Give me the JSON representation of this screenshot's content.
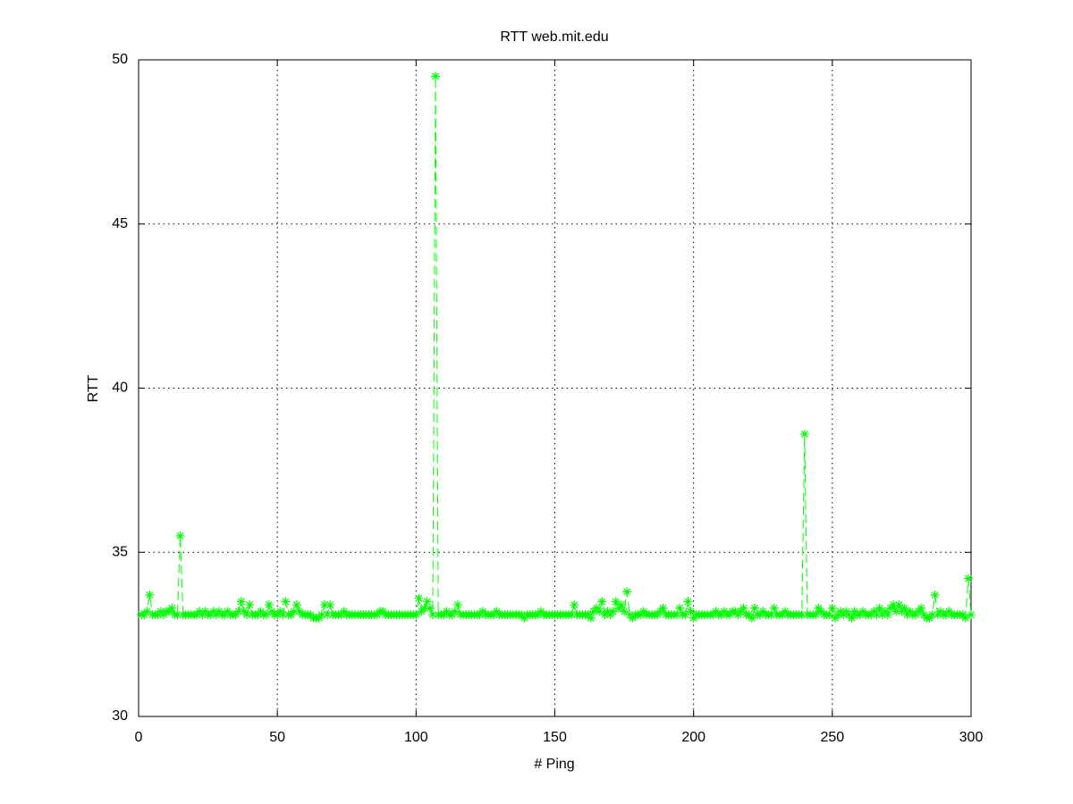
{
  "chart_data": {
    "type": "line",
    "title": "RTT web.mit.edu",
    "x_label": "# Ping",
    "y_label": "RTT",
    "xlim": [
      0,
      300
    ],
    "xticks": [
      0,
      50,
      100,
      150,
      200,
      250,
      300
    ],
    "ylim": [
      30,
      50
    ],
    "yticks": [
      30,
      35,
      40,
      45,
      50
    ],
    "grid": true,
    "marker": "asterisk",
    "line_style": "dashed",
    "x": [
      1,
      2,
      3,
      4,
      5,
      6,
      7,
      8,
      9,
      10,
      11,
      12,
      13,
      14,
      15,
      16,
      17,
      18,
      19,
      20,
      21,
      22,
      23,
      24,
      25,
      26,
      27,
      28,
      29,
      30,
      31,
      32,
      33,
      34,
      35,
      36,
      37,
      38,
      39,
      40,
      41,
      42,
      43,
      44,
      45,
      46,
      47,
      48,
      49,
      50,
      51,
      52,
      53,
      54,
      55,
      56,
      57,
      58,
      59,
      60,
      61,
      62,
      63,
      64,
      65,
      66,
      67,
      68,
      69,
      70,
      71,
      72,
      73,
      74,
      75,
      76,
      77,
      78,
      79,
      80,
      81,
      82,
      83,
      84,
      85,
      86,
      87,
      88,
      89,
      90,
      91,
      92,
      93,
      94,
      95,
      96,
      97,
      98,
      99,
      100,
      101,
      102,
      103,
      104,
      105,
      106,
      107,
      108,
      109,
      110,
      111,
      112,
      113,
      114,
      115,
      116,
      117,
      118,
      119,
      120,
      121,
      122,
      123,
      124,
      125,
      126,
      127,
      128,
      129,
      130,
      131,
      132,
      133,
      134,
      135,
      136,
      137,
      138,
      139,
      140,
      141,
      142,
      143,
      144,
      145,
      146,
      147,
      148,
      149,
      150,
      151,
      152,
      153,
      154,
      155,
      156,
      157,
      158,
      159,
      160,
      161,
      162,
      163,
      164,
      165,
      166,
      167,
      168,
      169,
      170,
      171,
      172,
      173,
      174,
      175,
      176,
      177,
      178,
      179,
      180,
      181,
      182,
      183,
      184,
      185,
      186,
      187,
      188,
      189,
      190,
      191,
      192,
      193,
      194,
      195,
      196,
      197,
      198,
      199,
      200,
      201,
      202,
      203,
      204,
      205,
      206,
      207,
      208,
      209,
      210,
      211,
      212,
      213,
      214,
      215,
      216,
      217,
      218,
      219,
      220,
      221,
      222,
      223,
      224,
      225,
      226,
      227,
      228,
      229,
      230,
      231,
      232,
      233,
      234,
      235,
      236,
      237,
      238,
      239,
      240,
      241,
      242,
      243,
      244,
      245,
      246,
      247,
      248,
      249,
      250,
      251,
      252,
      253,
      254,
      255,
      256,
      257,
      258,
      259,
      260,
      261,
      262,
      263,
      264,
      265,
      266,
      267,
      268,
      269,
      270,
      271,
      272,
      273,
      274,
      275,
      276,
      277,
      278,
      279,
      280,
      281,
      282,
      283,
      284,
      285,
      286,
      287,
      288,
      289,
      290,
      291,
      292,
      293,
      294,
      295,
      296,
      297,
      298,
      299,
      300
    ],
    "series": [
      {
        "color": "#00ff00",
        "values": [
          33.1,
          33.1,
          33.2,
          33.7,
          33.1,
          33.1,
          33.1,
          33.2,
          33.1,
          33.2,
          33.2,
          33.3,
          33.1,
          33.1,
          35.5,
          33.1,
          33.1,
          33.1,
          33.1,
          33.1,
          33.1,
          33.2,
          33.1,
          33.2,
          33.1,
          33.1,
          33.2,
          33.1,
          33.2,
          33.1,
          33.1,
          33.2,
          33.1,
          33.1,
          33.1,
          33.2,
          33.5,
          33.2,
          33.1,
          33.4,
          33.1,
          33.1,
          33.1,
          33.2,
          33.1,
          33.1,
          33.4,
          33.2,
          33.1,
          33.1,
          33.2,
          33.1,
          33.5,
          33.1,
          33.1,
          33.2,
          33.4,
          33.2,
          33.1,
          33.1,
          33.1,
          33.1,
          33.0,
          33.0,
          33.0,
          33.1,
          33.4,
          33.1,
          33.4,
          33.1,
          33.1,
          33.1,
          33.1,
          33.2,
          33.1,
          33.1,
          33.1,
          33.1,
          33.1,
          33.1,
          33.1,
          33.1,
          33.1,
          33.1,
          33.1,
          33.1,
          33.2,
          33.2,
          33.1,
          33.1,
          33.1,
          33.1,
          33.1,
          33.1,
          33.1,
          33.1,
          33.1,
          33.1,
          33.1,
          33.1,
          33.6,
          33.2,
          33.3,
          33.5,
          33.3,
          33.1,
          49.5,
          33.1,
          33.1,
          33.1,
          33.2,
          33.1,
          33.1,
          33.2,
          33.4,
          33.1,
          33.1,
          33.1,
          33.1,
          33.1,
          33.1,
          33.1,
          33.1,
          33.2,
          33.1,
          33.1,
          33.1,
          33.1,
          33.2,
          33.1,
          33.1,
          33.1,
          33.1,
          33.1,
          33.1,
          33.1,
          33.1,
          33.1,
          33.0,
          33.1,
          33.1,
          33.1,
          33.1,
          33.1,
          33.2,
          33.1,
          33.1,
          33.1,
          33.1,
          33.1,
          33.1,
          33.1,
          33.1,
          33.1,
          33.1,
          33.1,
          33.4,
          33.1,
          33.1,
          33.1,
          33.1,
          33.1,
          33.0,
          33.2,
          33.3,
          33.2,
          33.5,
          33.1,
          33.2,
          33.1,
          33.2,
          33.5,
          33.3,
          33.4,
          33.2,
          33.8,
          33.1,
          33.0,
          33.1,
          33.1,
          33.1,
          33.2,
          33.1,
          33.1,
          33.1,
          33.1,
          33.1,
          33.2,
          33.3,
          33.1,
          33.1,
          33.1,
          33.1,
          33.1,
          33.3,
          33.1,
          33.1,
          33.5,
          33.2,
          33.0,
          33.1,
          33.1,
          33.1,
          33.1,
          33.1,
          33.1,
          33.1,
          33.2,
          33.1,
          33.1,
          33.2,
          33.1,
          33.1,
          33.2,
          33.2,
          33.1,
          33.2,
          33.3,
          33.1,
          33.1,
          33.0,
          33.3,
          33.1,
          33.1,
          33.2,
          33.1,
          33.1,
          33.1,
          33.3,
          33.1,
          33.1,
          33.1,
          33.2,
          33.1,
          33.1,
          33.1,
          33.1,
          33.1,
          33.1,
          38.6,
          33.1,
          33.1,
          33.1,
          33.1,
          33.3,
          33.2,
          33.1,
          33.1,
          33.1,
          33.3,
          33.0,
          33.1,
          33.2,
          33.1,
          33.2,
          33.1,
          33.0,
          33.2,
          33.1,
          33.1,
          33.2,
          33.1,
          33.1,
          33.1,
          33.2,
          33.1,
          33.3,
          33.1,
          33.2,
          33.1,
          33.3,
          33.4,
          33.2,
          33.4,
          33.2,
          33.3,
          33.1,
          33.2,
          33.1,
          33.1,
          33.2,
          33.3,
          33.1,
          33.0,
          33.0,
          33.1,
          33.7,
          33.1,
          33.2,
          33.1,
          33.1,
          33.2,
          33.1,
          33.1,
          33.1,
          33.1,
          33.1,
          33.0,
          34.2,
          33.1
        ]
      }
    ]
  }
}
